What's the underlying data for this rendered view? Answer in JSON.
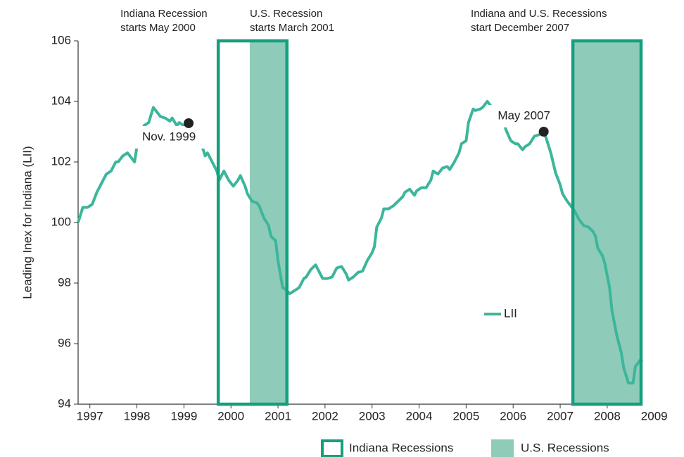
{
  "chart_data": {
    "type": "line",
    "ylabel": "Leading Inex for Indiana (LII)",
    "xlim": [
      1996.75,
      2008.75
    ],
    "xticks": [
      1997,
      1998,
      1999,
      2000,
      2001,
      2002,
      2003,
      2004,
      2005,
      2006,
      2007,
      2008,
      2009
    ],
    "ylim": [
      94,
      106
    ],
    "yticks": [
      94,
      96,
      98,
      100,
      102,
      104,
      106
    ],
    "series": [
      {
        "name": "LII",
        "color": "#3cb69b",
        "x": [
          1996.75,
          1996.85,
          1996.95,
          1997.05,
          1997.15,
          1997.25,
          1997.35,
          1997.45,
          1997.55,
          1997.6,
          1997.7,
          1997.8,
          1997.9,
          1997.95,
          1998.0,
          1998.1,
          1998.15,
          1998.25,
          1998.35,
          1998.4,
          1998.5,
          1998.6,
          1998.7,
          1998.75,
          1998.85,
          1998.9,
          1999.0,
          1999.1,
          1999.2,
          1999.25,
          1999.35,
          1999.45,
          1999.5,
          1999.6,
          1999.7,
          1999.75,
          1999.85,
          1999.95,
          2000.05,
          2000.15,
          2000.2,
          2000.3,
          2000.35,
          2000.45,
          2000.55,
          2000.6,
          2000.7,
          2000.8,
          2000.85,
          2000.95,
          2001.0,
          2001.1,
          2001.15,
          2001.25,
          2001.35,
          2001.45,
          2001.55,
          2001.6,
          2001.7,
          2001.8,
          2001.9,
          2001.95,
          2002.05,
          2002.15,
          2002.25,
          2002.35,
          2002.45,
          2002.5,
          2002.6,
          2002.7,
          2002.8,
          2002.9,
          2003.0,
          2003.05,
          2003.1,
          2003.2,
          2003.25,
          2003.35,
          2003.45,
          2003.55,
          2003.65,
          2003.7,
          2003.8,
          2003.9,
          2003.95,
          2004.05,
          2004.15,
          2004.25,
          2004.3,
          2004.4,
          2004.5,
          2004.6,
          2004.65,
          2004.75,
          2004.85,
          2004.9,
          2005.0,
          2005.05,
          2005.15,
          2005.2,
          2005.3,
          2005.35,
          2005.45,
          2005.8,
          2005.85,
          2005.95,
          2006.05,
          2006.1,
          2006.2,
          2006.25,
          2006.35,
          2006.45,
          2006.55,
          2006.65,
          2006.7,
          2006.8,
          2006.9,
          2007.0,
          2007.05,
          2007.15,
          2007.25,
          2007.3,
          2007.4,
          2007.5,
          2007.6,
          2007.7,
          2007.75,
          2007.8,
          2007.9,
          2007.95,
          2008.05,
          2008.1,
          2008.2,
          2008.3,
          2008.35,
          2008.45,
          2008.55,
          2008.6,
          2008.7,
          2008.75
        ],
        "values": [
          100.0,
          100.5,
          100.5,
          100.6,
          101.0,
          101.3,
          101.6,
          101.7,
          102.0,
          102.0,
          102.2,
          102.3,
          102.1,
          102.0,
          102.5,
          102.9,
          103.2,
          103.3,
          103.8,
          103.7,
          103.5,
          103.45,
          103.35,
          103.45,
          103.2,
          103.3,
          103.2,
          103.28,
          103.1,
          103.05,
          102.7,
          102.2,
          102.3,
          102.0,
          101.7,
          101.4,
          101.7,
          101.4,
          101.2,
          101.4,
          101.55,
          101.2,
          100.95,
          100.7,
          100.65,
          100.55,
          100.15,
          99.9,
          99.55,
          99.4,
          98.75,
          97.85,
          97.8,
          97.65,
          97.75,
          97.85,
          98.15,
          98.2,
          98.45,
          98.6,
          98.3,
          98.15,
          98.15,
          98.2,
          98.5,
          98.55,
          98.3,
          98.1,
          98.2,
          98.35,
          98.4,
          98.75,
          99.0,
          99.2,
          99.85,
          100.15,
          100.45,
          100.45,
          100.55,
          100.7,
          100.85,
          101.0,
          101.1,
          100.9,
          101.05,
          101.15,
          101.15,
          101.4,
          101.7,
          101.6,
          101.8,
          101.85,
          101.75,
          102.0,
          102.3,
          102.6,
          102.7,
          103.3,
          103.75,
          103.7,
          103.75,
          103.8,
          104.0,
          103.3,
          103.05,
          102.7,
          102.6,
          102.6,
          102.4,
          102.5,
          102.6,
          102.85,
          102.9,
          103.0,
          102.8,
          102.3,
          101.65,
          101.25,
          100.95,
          100.7,
          100.5,
          100.4,
          100.1,
          99.9,
          99.85,
          99.7,
          99.55,
          99.15,
          98.9,
          98.65,
          97.85,
          97.1,
          96.3,
          95.7,
          95.2,
          94.7,
          94.7,
          95.25,
          95.45,
          95.4
        ]
      }
    ],
    "points": [
      {
        "label": "Nov. 1999",
        "x": 1999.1,
        "y": 103.28
      },
      {
        "label": "May 2007",
        "x": 2006.65,
        "y": 103.0
      }
    ],
    "recessions": [
      {
        "name": "Indiana Recessions",
        "color": "#14a07e",
        "periods": [
          [
            1999.7,
            2001.22
          ],
          [
            2007.24,
            2008.75
          ]
        ]
      },
      {
        "name": "U.S. Recessions",
        "color": "#8fcbb9",
        "periods": [
          [
            2000.4,
            2001.22
          ],
          [
            2007.24,
            2008.75
          ]
        ]
      }
    ],
    "annotations": [
      {
        "lines": [
          "Indiana Recession",
          "starts May 2000"
        ],
        "x": 1997.65
      },
      {
        "lines": [
          "U.S. Recession",
          "starts March 2001"
        ],
        "x": 2000.4
      },
      {
        "lines": [
          "Indiana and U.S. Recessions",
          "start December 2007"
        ],
        "x": 2005.1
      }
    ]
  }
}
